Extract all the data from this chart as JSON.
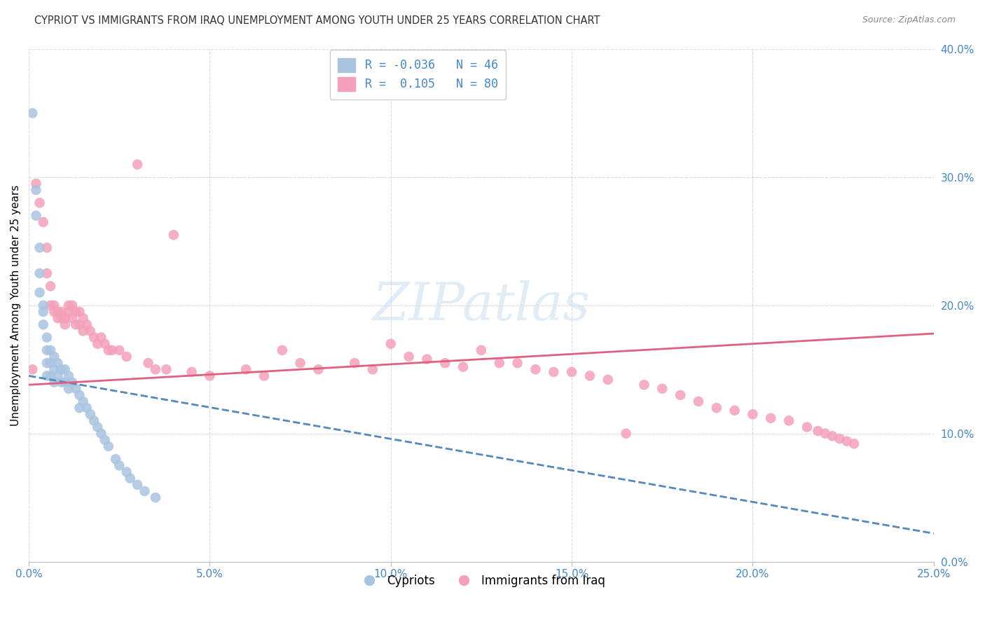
{
  "title": "CYPRIOT VS IMMIGRANTS FROM IRAQ UNEMPLOYMENT AMONG YOUTH UNDER 25 YEARS CORRELATION CHART",
  "source": "Source: ZipAtlas.com",
  "ylabel": "Unemployment Among Youth under 25 years",
  "xmin": 0.0,
  "xmax": 0.25,
  "ymin": 0.0,
  "ymax": 0.4,
  "xticks": [
    0.0,
    0.05,
    0.1,
    0.15,
    0.2,
    0.25
  ],
  "yticks": [
    0.0,
    0.1,
    0.2,
    0.3,
    0.4
  ],
  "R_cypriot": -0.036,
  "N_cypriot": 46,
  "R_iraq": 0.105,
  "N_iraq": 80,
  "cypriot_color": "#a8c4e0",
  "iraq_color": "#f4a0b8",
  "cypriot_line_color": "#5588bb",
  "iraq_line_color": "#e06080",
  "axis_color": "#4488cc",
  "cypriot_x": [
    0.001,
    0.002,
    0.002,
    0.003,
    0.003,
    0.003,
    0.004,
    0.004,
    0.004,
    0.005,
    0.005,
    0.005,
    0.005,
    0.006,
    0.006,
    0.006,
    0.007,
    0.007,
    0.007,
    0.008,
    0.008,
    0.009,
    0.009,
    0.01,
    0.01,
    0.011,
    0.011,
    0.012,
    0.013,
    0.014,
    0.014,
    0.015,
    0.016,
    0.017,
    0.018,
    0.019,
    0.02,
    0.021,
    0.022,
    0.024,
    0.025,
    0.027,
    0.028,
    0.03,
    0.032,
    0.035
  ],
  "cypriot_y": [
    0.35,
    0.29,
    0.27,
    0.245,
    0.225,
    0.21,
    0.2,
    0.195,
    0.185,
    0.175,
    0.165,
    0.155,
    0.145,
    0.165,
    0.155,
    0.145,
    0.16,
    0.15,
    0.14,
    0.155,
    0.145,
    0.15,
    0.14,
    0.15,
    0.14,
    0.145,
    0.135,
    0.14,
    0.135,
    0.13,
    0.12,
    0.125,
    0.12,
    0.115,
    0.11,
    0.105,
    0.1,
    0.095,
    0.09,
    0.08,
    0.075,
    0.07,
    0.065,
    0.06,
    0.055,
    0.05
  ],
  "iraq_x": [
    0.001,
    0.002,
    0.003,
    0.004,
    0.005,
    0.005,
    0.006,
    0.006,
    0.007,
    0.007,
    0.008,
    0.008,
    0.009,
    0.009,
    0.01,
    0.01,
    0.011,
    0.011,
    0.012,
    0.012,
    0.013,
    0.013,
    0.014,
    0.014,
    0.015,
    0.015,
    0.016,
    0.017,
    0.018,
    0.019,
    0.02,
    0.021,
    0.022,
    0.023,
    0.025,
    0.027,
    0.03,
    0.033,
    0.035,
    0.038,
    0.04,
    0.045,
    0.05,
    0.06,
    0.065,
    0.07,
    0.075,
    0.08,
    0.09,
    0.095,
    0.1,
    0.105,
    0.11,
    0.115,
    0.12,
    0.125,
    0.13,
    0.135,
    0.14,
    0.145,
    0.15,
    0.155,
    0.16,
    0.165,
    0.17,
    0.175,
    0.18,
    0.185,
    0.19,
    0.195,
    0.2,
    0.205,
    0.21,
    0.215,
    0.218,
    0.22,
    0.222,
    0.224,
    0.226,
    0.228
  ],
  "iraq_y": [
    0.15,
    0.295,
    0.28,
    0.265,
    0.245,
    0.225,
    0.215,
    0.2,
    0.2,
    0.195,
    0.195,
    0.19,
    0.195,
    0.19,
    0.19,
    0.185,
    0.2,
    0.195,
    0.2,
    0.19,
    0.195,
    0.185,
    0.195,
    0.185,
    0.19,
    0.18,
    0.185,
    0.18,
    0.175,
    0.17,
    0.175,
    0.17,
    0.165,
    0.165,
    0.165,
    0.16,
    0.31,
    0.155,
    0.15,
    0.15,
    0.255,
    0.148,
    0.145,
    0.15,
    0.145,
    0.165,
    0.155,
    0.15,
    0.155,
    0.15,
    0.17,
    0.16,
    0.158,
    0.155,
    0.152,
    0.165,
    0.155,
    0.155,
    0.15,
    0.148,
    0.148,
    0.145,
    0.142,
    0.1,
    0.138,
    0.135,
    0.13,
    0.125,
    0.12,
    0.118,
    0.115,
    0.112,
    0.11,
    0.105,
    0.102,
    0.1,
    0.098,
    0.096,
    0.094,
    0.092
  ],
  "cyp_trend_x0": 0.0,
  "cyp_trend_x1": 0.25,
  "cyp_trend_y0": 0.145,
  "cyp_trend_y1": 0.022,
  "iraq_trend_x0": 0.0,
  "iraq_trend_x1": 0.25,
  "iraq_trend_y0": 0.138,
  "iraq_trend_y1": 0.178
}
